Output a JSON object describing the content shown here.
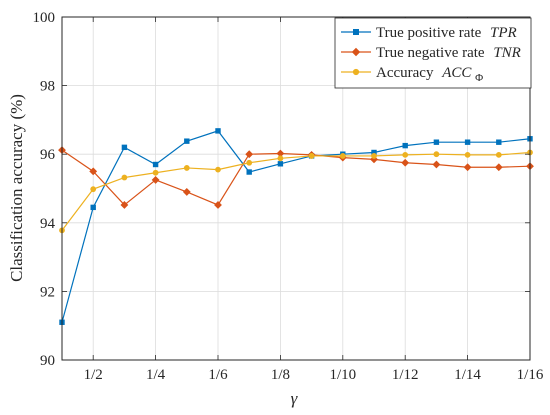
{
  "chart_data": {
    "type": "line",
    "title": "",
    "xlabel": "γ",
    "ylabel": "Classification accuracy (%)",
    "ylim": [
      90,
      100
    ],
    "xlim": [
      1,
      16
    ],
    "x": [
      1,
      2,
      3,
      4,
      5,
      6,
      7,
      8,
      9,
      10,
      11,
      12,
      13,
      14,
      15,
      16
    ],
    "xticks": [
      2,
      4,
      6,
      8,
      10,
      12,
      14,
      16
    ],
    "xtick_labels": [
      "1/2",
      "1/4",
      "1/6",
      "1/8",
      "1/10",
      "1/12",
      "1/14",
      "1/16"
    ],
    "yticks": [
      90,
      92,
      94,
      96,
      98,
      100
    ],
    "ytick_labels": [
      "90",
      "92",
      "94",
      "96",
      "98",
      "100"
    ],
    "grid": true,
    "legend_position": "top-right",
    "series": [
      {
        "name": "True positive rate",
        "name_symbol": "TPR",
        "color": "#0072BD",
        "marker": "square",
        "values": [
          91.1,
          94.45,
          96.2,
          95.7,
          96.38,
          96.68,
          95.48,
          95.72,
          95.95,
          96.0,
          96.05,
          96.25,
          96.35,
          96.35,
          96.35,
          96.45
        ]
      },
      {
        "name": "True negative rate",
        "name_symbol": "TNR",
        "color": "#D95319",
        "marker": "diamond",
        "values": [
          96.12,
          95.5,
          94.52,
          95.25,
          94.9,
          94.52,
          96.0,
          96.02,
          95.98,
          95.9,
          95.85,
          95.75,
          95.7,
          95.62,
          95.62,
          95.65
        ]
      },
      {
        "name": "Accuracy",
        "name_symbol": "ACC",
        "name_subscript": "Φ",
        "color": "#EDB120",
        "marker": "circle",
        "values": [
          93.78,
          94.98,
          95.32,
          95.46,
          95.6,
          95.55,
          95.75,
          95.88,
          95.95,
          95.95,
          95.95,
          95.98,
          96.0,
          95.98,
          95.98,
          96.05
        ]
      }
    ]
  }
}
